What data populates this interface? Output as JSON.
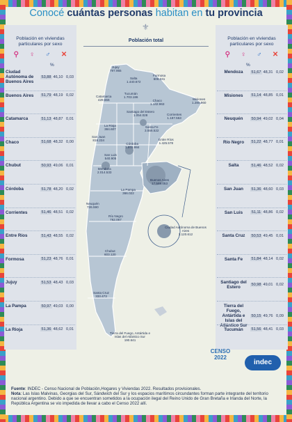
{
  "title": {
    "part1": "Conocé",
    "part2": "cuántas personas",
    "part3": "habitan en",
    "part4": "tu provincia"
  },
  "header": {
    "left_label": "Población en viviendas particulares por sexo",
    "right_label": "Población en viviendas particulares por sexo",
    "pct": "%",
    "total_label": "Población total",
    "icons": [
      "location-icon",
      "female-icon",
      "male-icon",
      "x-icon"
    ]
  },
  "left_table": [
    {
      "name": "Ciudad Autónoma de Buenos Aires",
      "f": "53,88",
      "m": "46,10",
      "x": "0,03"
    },
    {
      "name": "Buenos Aires",
      "f": "51,79",
      "m": "48,19",
      "x": "0,02"
    },
    {
      "name": "Catamarca",
      "f": "51,13",
      "m": "48,87",
      "x": "0,01"
    },
    {
      "name": "Chaco",
      "f": "51,68",
      "m": "48,32",
      "x": "0,00"
    },
    {
      "name": "Chubut",
      "f": "50,93",
      "m": "49,06",
      "x": "0,01"
    },
    {
      "name": "Córdoba",
      "f": "51,78",
      "m": "48,20",
      "x": "0,02"
    },
    {
      "name": "Corrientes",
      "f": "51,46",
      "m": "48,51",
      "x": "0,02"
    },
    {
      "name": "Entre Ríos",
      "f": "51,43",
      "m": "48,55",
      "x": "0,02"
    },
    {
      "name": "Formosa",
      "f": "51,23",
      "m": "48,76",
      "x": "0,01"
    },
    {
      "name": "Jujuy",
      "f": "51,53",
      "m": "48,43",
      "x": "0,03"
    },
    {
      "name": "La Pampa",
      "f": "50,97",
      "m": "49,03",
      "x": "0,00"
    },
    {
      "name": "La Rioja",
      "f": "51,36",
      "m": "48,62",
      "x": "0,01"
    }
  ],
  "right_table": [
    {
      "name": "Mendoza",
      "f": "51,67",
      "m": "48,31",
      "x": "0,02"
    },
    {
      "name": "Misiones",
      "f": "51,14",
      "m": "48,85",
      "x": "0,01"
    },
    {
      "name": "Neuquén",
      "f": "50,94",
      "m": "49,02",
      "x": "0,04"
    },
    {
      "name": "Río Negro",
      "f": "51,22",
      "m": "48,77",
      "x": "0,01"
    },
    {
      "name": "Salta",
      "f": "51,46",
      "m": "48,52",
      "x": "0,02"
    },
    {
      "name": "San Juan",
      "f": "51,36",
      "m": "48,60",
      "x": "0,03"
    },
    {
      "name": "San Luis",
      "f": "51,11",
      "m": "48,86",
      "x": "0,02"
    },
    {
      "name": "Santa Cruz",
      "f": "50,53",
      "m": "49,45",
      "x": "0,01"
    },
    {
      "name": "Santa Fe",
      "f": "51,84",
      "m": "48,14",
      "x": "0,02"
    },
    {
      "name": "Santiago del Estero",
      "f": "50,98",
      "m": "49,01",
      "x": "0,02"
    },
    {
      "name": "Tierra del Fuego, Antártida e Islas del Atlántico Sur",
      "f": "50,15",
      "m": "49,76",
      "x": "0,09"
    },
    {
      "name": "Tucumán",
      "f": "51,56",
      "m": "48,41",
      "x": "0,03"
    }
  ],
  "map_labels": [
    {
      "name": "Jujuy",
      "value": "797.955"
    },
    {
      "name": "Salta",
      "value": "1.440.672"
    },
    {
      "name": "Formosa",
      "value": "606.041"
    },
    {
      "name": "Tucumán",
      "value": "1.703.186"
    },
    {
      "name": "Catamarca",
      "value": "429.556"
    },
    {
      "name": "Chaco",
      "value": "1.142.963"
    },
    {
      "name": "Misiones",
      "value": "1.280.960"
    },
    {
      "name": "Santiago del Estero",
      "value": "1.054.028"
    },
    {
      "name": "Corrientes",
      "value": "1.197.553"
    },
    {
      "name": "La Rioja",
      "value": "384.607"
    },
    {
      "name": "Santa Fe",
      "value": "3.556.522"
    },
    {
      "name": "San Juan",
      "value": "818.234"
    },
    {
      "name": "Entre Ríos",
      "value": "1.425.578"
    },
    {
      "name": "Córdoba",
      "value": "3.978.984"
    },
    {
      "name": "San Luis",
      "value": "540.905"
    },
    {
      "name": "Mendoza",
      "value": "2.014.533"
    },
    {
      "name": "Buenos Aires",
      "value": "17.569.053"
    },
    {
      "name": "La Pampa",
      "value": "366.022"
    },
    {
      "name": "Neuquén",
      "value": "726.590"
    },
    {
      "name": "Río Negro",
      "value": "762.067"
    },
    {
      "name": "Ciudad Autónoma de Buenos Aires",
      "value": "3.120.612"
    },
    {
      "name": "Chubut",
      "value": "603.120"
    },
    {
      "name": "Santa Cruz",
      "value": "333.473"
    },
    {
      "name": "Tierra del Fuego, Antártida e Islas del Atlántico Sur",
      "value": "190.641"
    }
  ],
  "footer": {
    "source_label": "Fuente",
    "source_text": ": INDEC - Censo Nacional de Población,Hogares y Viviendas 2022. Resultados provisionales.",
    "note_label": "Nota",
    "note_text": ": Las Islas Malvinas, Georgias del Sur, Sándwich del Sur y los espacios marítimos circundantes forman parte integrante del territorio nacional argentino. Debido a que se encuentran sometidos a la ocupación ilegal del Reino Unido de Gran Bretaña e Irlanda del Norte, la República Argentina se vio impedida de llevar a cabo el Censo 2022 allí."
  },
  "logos": {
    "censo": "CENSO",
    "censo_year": "2022",
    "indec": "indec"
  }
}
